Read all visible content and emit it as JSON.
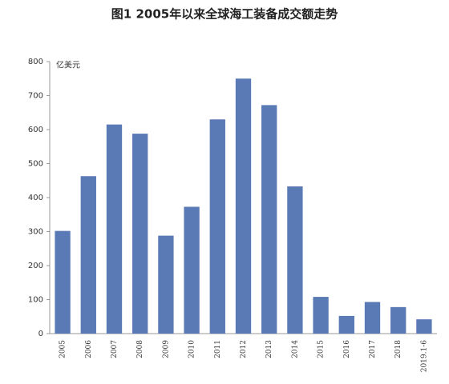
{
  "chart_data": {
    "type": "bar",
    "title": "图1  2005年以来全球海工装备成交额走势",
    "y_label": "亿美元",
    "categories": [
      "2005",
      "2006",
      "2007",
      "2008",
      "2009",
      "2010",
      "2011",
      "2012",
      "2013",
      "2014",
      "2015",
      "2016",
      "2017",
      "2018",
      "2019.1-6"
    ],
    "values": [
      302,
      463,
      615,
      588,
      288,
      373,
      630,
      750,
      672,
      433,
      108,
      52,
      93,
      78,
      42
    ],
    "color": "#5a7ab5",
    "ylim": [
      0,
      800
    ],
    "yticks": [
      0,
      100,
      200,
      300,
      400,
      500,
      600,
      700,
      800
    ],
    "grid": false
  }
}
